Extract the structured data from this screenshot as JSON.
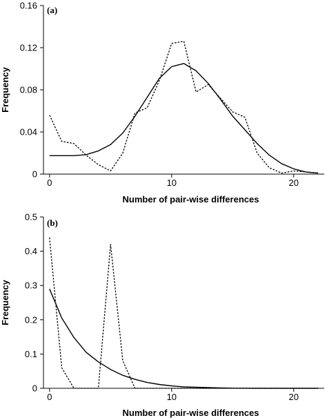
{
  "chart_data": [
    {
      "type": "line",
      "panel_label": "(a)",
      "xlabel": "Number of pair-wise differences",
      "ylabel": "Frequency",
      "xlim": [
        -0.5,
        22.5
      ],
      "ylim": [
        0,
        0.16
      ],
      "x_ticks": [
        0,
        10,
        20
      ],
      "x_tick_labels": [
        "0",
        "10",
        "20"
      ],
      "y_ticks": [
        0,
        0.04,
        0.08,
        0.12,
        0.16
      ],
      "y_tick_labels": [
        "0",
        "0.04",
        "0.08",
        "0.12",
        "0.16"
      ],
      "grid": false,
      "series": [
        {
          "style": "solid",
          "color": "#000000",
          "x": [
            0,
            1,
            2,
            3,
            4,
            5,
            6,
            7,
            8,
            9,
            10,
            11,
            12,
            13,
            14,
            15,
            16,
            17,
            18,
            19,
            20,
            21,
            22
          ],
          "values": [
            0.0175,
            0.0175,
            0.0175,
            0.0185,
            0.022,
            0.028,
            0.039,
            0.055,
            0.073,
            0.091,
            0.102,
            0.105,
            0.098,
            0.086,
            0.071,
            0.055,
            0.042,
            0.029,
            0.018,
            0.01,
            0.005,
            0.002,
            0.001
          ]
        },
        {
          "style": "dotted",
          "color": "#000000",
          "x": [
            0,
            1,
            2,
            3,
            4,
            5,
            6,
            7,
            8,
            9,
            10,
            11,
            12,
            13,
            14,
            15,
            16,
            17,
            18,
            19,
            20,
            21,
            22
          ],
          "values": [
            0.056,
            0.031,
            0.029,
            0.018,
            0.009,
            0.003,
            0.02,
            0.058,
            0.063,
            0.089,
            0.124,
            0.126,
            0.078,
            0.085,
            0.072,
            0.059,
            0.054,
            0.02,
            0.006,
            0.001,
            0.003,
            0.002,
            0.001
          ]
        }
      ]
    },
    {
      "type": "line",
      "panel_label": "(b)",
      "xlabel": "Number of pair-wise differences",
      "ylabel": "Frequency",
      "xlim": [
        -0.5,
        22.5
      ],
      "ylim": [
        0,
        0.5
      ],
      "x_ticks": [
        0,
        10,
        20
      ],
      "x_tick_labels": [
        "0",
        "10",
        "20"
      ],
      "y_ticks": [
        0,
        0.1,
        0.2,
        0.3,
        0.4,
        0.5
      ],
      "y_tick_labels": [
        "0",
        "0.1",
        "0.2",
        "0.3",
        "0.4",
        "0.5"
      ],
      "grid": false,
      "series": [
        {
          "style": "solid",
          "color": "#000000",
          "x": [
            0,
            1,
            2,
            3,
            4,
            5,
            6,
            7,
            8,
            9,
            10,
            11,
            12,
            13,
            14,
            15,
            16,
            17,
            18,
            19,
            20,
            21,
            22
          ],
          "values": [
            0.29,
            0.205,
            0.148,
            0.105,
            0.077,
            0.055,
            0.038,
            0.026,
            0.017,
            0.011,
            0.007,
            0.004,
            0.003,
            0.002,
            0.001,
            0.0005,
            0.0003,
            0,
            0,
            0,
            0,
            0,
            0
          ]
        },
        {
          "style": "dotted",
          "color": "#000000",
          "x": [
            0,
            1,
            2,
            3,
            4,
            5,
            6,
            7,
            8,
            9,
            10,
            11,
            12,
            13,
            14,
            15,
            16,
            17,
            18,
            19,
            20,
            21,
            22
          ],
          "values": [
            0.44,
            0.06,
            0,
            0,
            0,
            0.42,
            0.08,
            0,
            0,
            0,
            0,
            0,
            0,
            0,
            0,
            0,
            0,
            0,
            0,
            0,
            0,
            0,
            0
          ]
        }
      ]
    }
  ]
}
